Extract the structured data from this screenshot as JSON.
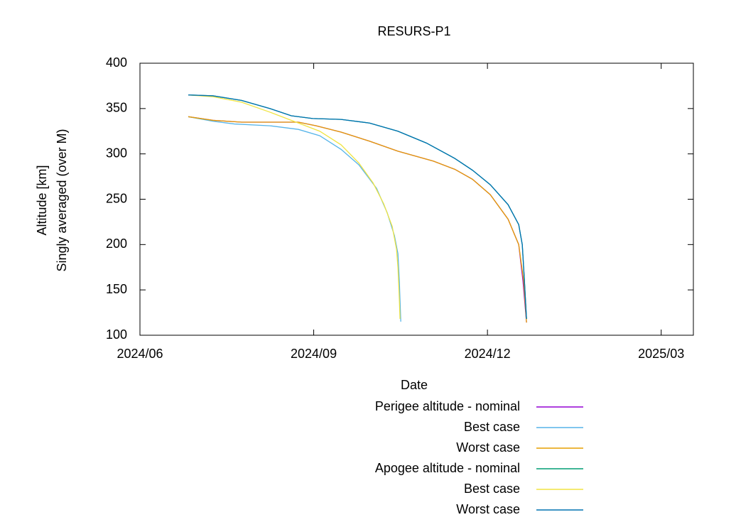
{
  "chart_data": {
    "type": "line",
    "title": "RESURS-P1",
    "xlabel": "Date",
    "ylabel": [
      "Altitude [km]",
      "Singly averaged (over M)"
    ],
    "xlim": [
      2024.4167,
      2025.213
    ],
    "xticks": [
      {
        "value": 2024.4167,
        "label": "2024/06"
      },
      {
        "value": 2024.6667,
        "label": "2024/09"
      },
      {
        "value": 2024.9167,
        "label": "2024/12"
      },
      {
        "value": 2025.1667,
        "label": "2025/03"
      }
    ],
    "ylim": [
      100,
      400
    ],
    "yticks": [
      100,
      150,
      200,
      250,
      300,
      350,
      400
    ],
    "series": [
      {
        "name": "Perigee altitude - nominal",
        "color": "#9400d3",
        "x": [
          2024.4862,
          2024.522,
          2024.5629,
          2024.6038,
          2024.6447,
          2024.6703,
          2024.7061,
          2024.747,
          2024.7879,
          2024.839,
          2024.8697,
          2024.8952,
          2024.9208,
          2024.9464,
          2024.9617,
          2024.9678,
          2024.9729
        ],
        "values": [
          341,
          337,
          335,
          335,
          335,
          331,
          324,
          314,
          303,
          292,
          283,
          272,
          255,
          228,
          200,
          160,
          114
        ]
      },
      {
        "name": "Best case",
        "color": "#56b4e9",
        "x": [
          2024.4862,
          2024.522,
          2024.5527,
          2024.6038,
          2024.6447,
          2024.6754,
          2024.7061,
          2024.7316,
          2024.7572,
          2024.7725,
          2024.7828,
          2024.7879,
          2024.7899,
          2024.792
        ],
        "values": [
          341,
          336,
          333,
          331,
          327,
          320,
          305,
          288,
          262,
          235,
          210,
          190,
          160,
          115
        ]
      },
      {
        "name": "Worst case",
        "color": "#e69f00",
        "x": [
          2024.4862,
          2024.522,
          2024.5629,
          2024.6038,
          2024.6447,
          2024.6703,
          2024.7061,
          2024.747,
          2024.7879,
          2024.839,
          2024.8697,
          2024.8952,
          2024.9208,
          2024.9464,
          2024.9617,
          2024.9688,
          2024.9729
        ],
        "values": [
          341,
          337,
          335,
          335,
          335,
          331,
          324,
          314,
          303,
          292,
          283,
          272,
          255,
          228,
          200,
          160,
          114
        ]
      },
      {
        "name": "Apogee altitude - nominal",
        "color": "#009e73",
        "x": [
          2024.4862,
          2024.522,
          2024.5629,
          2024.6038,
          2024.6345,
          2024.6652,
          2024.7061,
          2024.747,
          2024.7879,
          2024.8288,
          2024.8697,
          2024.8952,
          2024.9208,
          2024.9464,
          2024.9617,
          2024.9668,
          2024.9699,
          2024.9729
        ],
        "values": [
          365,
          364,
          359,
          350,
          342,
          339,
          338,
          334,
          325,
          312,
          295,
          282,
          266,
          244,
          222,
          200,
          160,
          118
        ]
      },
      {
        "name": "Best case",
        "color": "#f0e442",
        "x": [
          2024.4862,
          2024.522,
          2024.5629,
          2024.6038,
          2024.6447,
          2024.6754,
          2024.7061,
          2024.7316,
          2024.7521,
          2024.7674,
          2024.7797,
          2024.7858,
          2024.7879,
          2024.7899,
          2024.7909
        ],
        "values": [
          365,
          363,
          357,
          346,
          334,
          325,
          310,
          290,
          268,
          245,
          220,
          195,
          175,
          140,
          118
        ]
      },
      {
        "name": "Worst case",
        "color": "#0072b2",
        "x": [
          2024.4862,
          2024.522,
          2024.5629,
          2024.6038,
          2024.6345,
          2024.6652,
          2024.7061,
          2024.747,
          2024.7879,
          2024.8288,
          2024.8697,
          2024.8952,
          2024.9208,
          2024.9464,
          2024.9617,
          2024.9668,
          2024.9699,
          2024.9729
        ],
        "values": [
          365,
          364,
          359,
          350,
          342,
          339,
          338,
          334,
          325,
          312,
          295,
          282,
          266,
          244,
          222,
          200,
          160,
          118
        ]
      }
    ]
  }
}
